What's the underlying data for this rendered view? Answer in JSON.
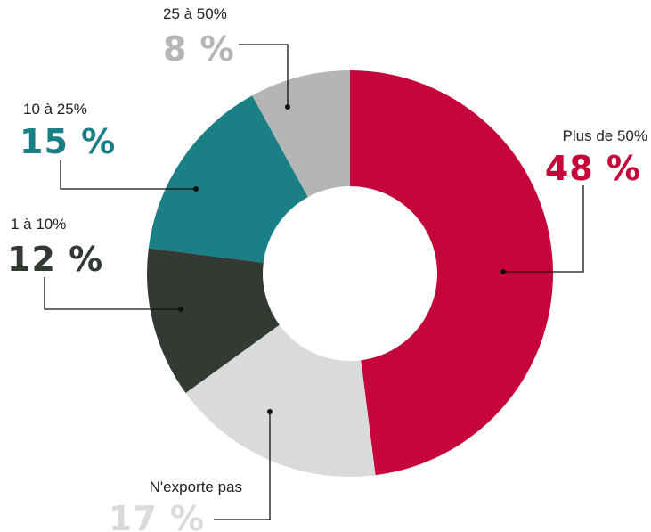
{
  "chart_data": {
    "type": "donut",
    "categories": [
      "Plus de 50%",
      "N'exporte pas",
      "1 à 10%",
      "10 à 25%",
      "25 à 50%"
    ],
    "values": [
      48,
      17,
      12,
      15,
      8
    ],
    "value_labels": [
      "48 %",
      "17 %",
      "12 %",
      "15 %",
      "8 %"
    ],
    "colors": [
      "#c4063a",
      "#d9dada",
      "#323a33",
      "#1b8085",
      "#b5b5b5"
    ]
  }
}
